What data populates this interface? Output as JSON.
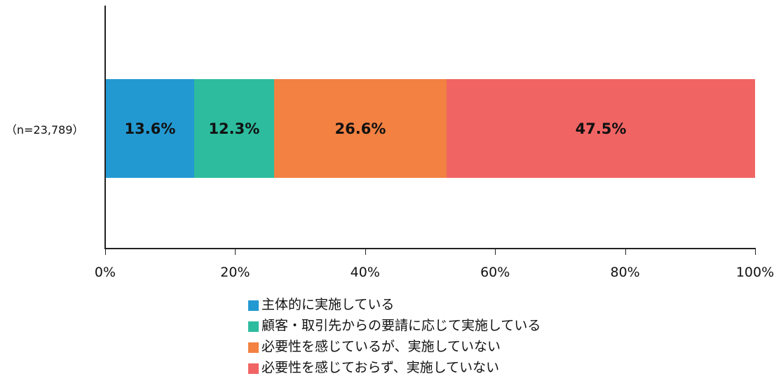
{
  "chart_data": {
    "type": "bar",
    "orientation": "horizontal",
    "stacked": "100%",
    "title": "",
    "xlabel": "",
    "ylabel": "",
    "categories": [
      "（n=23,789）"
    ],
    "series": [
      {
        "name": "主体的に実施している",
        "values": [
          13.6
        ],
        "color": "#2399d2",
        "label": "13.6%"
      },
      {
        "name": "顧客・取引先からの要請に応じて実施している",
        "values": [
          12.3
        ],
        "color": "#2dbc9e",
        "label": "12.3%"
      },
      {
        "name": "必要性を感じているが、実施していない",
        "values": [
          26.6
        ],
        "color": "#f28142",
        "label": "26.6%"
      },
      {
        "name": "必要性を感じておらず、実施していない",
        "values": [
          47.5
        ],
        "color": "#f06463",
        "label": "47.5%"
      }
    ],
    "xlim": [
      0,
      100
    ],
    "x_ticks": [
      "0%",
      "20%",
      "40%",
      "60%",
      "80%",
      "100%"
    ],
    "grid": false,
    "legend_position": "bottom"
  }
}
